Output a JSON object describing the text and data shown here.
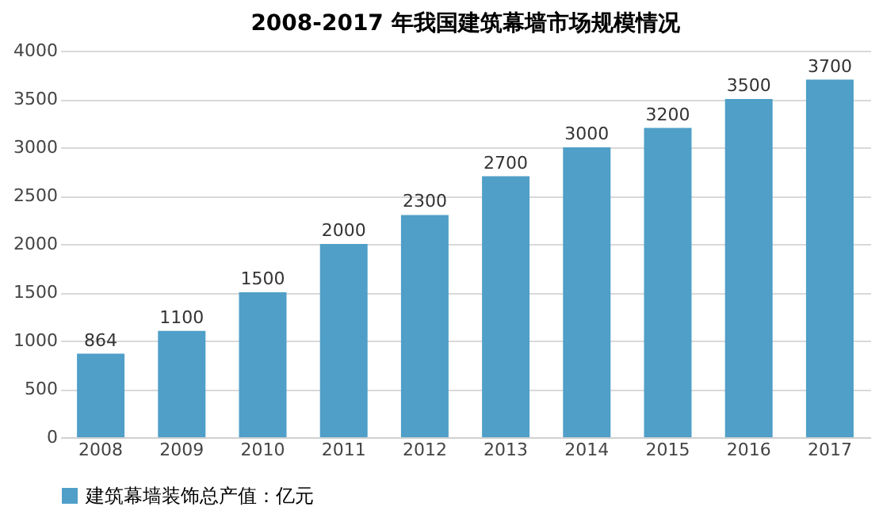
{
  "chart_data": {
    "type": "bar",
    "title": "2008-2017 年我国建筑幕墙市场规模情况",
    "categories": [
      "2008",
      "2009",
      "2010",
      "2011",
      "2012",
      "2013",
      "2014",
      "2015",
      "2016",
      "2017"
    ],
    "series": [
      {
        "name": "建筑幕墙装饰总产值：亿元",
        "color": "#4f9fc8",
        "values": [
          864,
          1100,
          1500,
          2000,
          2300,
          2700,
          3000,
          3200,
          3500,
          3700
        ]
      }
    ],
    "ylim": [
      0,
      4000
    ],
    "yticks": [
      0,
      500,
      1000,
      1500,
      2000,
      2500,
      3000,
      3500,
      4000
    ],
    "grid": "y",
    "legend": "bottom",
    "data_labels": true
  }
}
